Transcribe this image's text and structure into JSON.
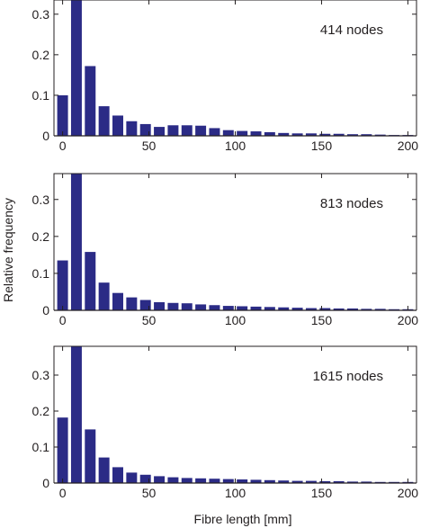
{
  "figure": {
    "xlabel": "Fibre length [mm]",
    "ylabel": "Relative  frequency"
  },
  "chart_data": [
    {
      "type": "bar",
      "annotation": "414  nodes",
      "bin_centers": [
        0,
        8,
        16,
        24,
        32,
        40,
        48,
        56,
        64,
        72,
        80,
        88,
        96,
        104,
        112,
        120,
        128,
        136,
        144,
        152,
        160,
        168,
        176,
        184,
        192,
        200
      ],
      "values": [
        0.1,
        0.34,
        0.172,
        0.073,
        0.05,
        0.036,
        0.029,
        0.022,
        0.026,
        0.026,
        0.025,
        0.019,
        0.014,
        0.012,
        0.011,
        0.009,
        0.007,
        0.006,
        0.006,
        0.005,
        0.005,
        0.004,
        0.004,
        0.003,
        0.002,
        0.002
      ],
      "xlim": [
        -5,
        205
      ],
      "ylim": [
        0,
        0.335
      ],
      "xticks": [
        0,
        50,
        100,
        150,
        200
      ],
      "yticks": [
        0,
        0.1,
        0.2,
        0.3
      ],
      "ytick_labels": [
        "0",
        "0.1",
        "0.2",
        "0.3"
      ],
      "bar_color": "#2b2b86"
    },
    {
      "type": "bar",
      "annotation": "813  nodes",
      "bin_centers": [
        0,
        8,
        16,
        24,
        32,
        40,
        48,
        56,
        64,
        72,
        80,
        88,
        96,
        104,
        112,
        120,
        128,
        136,
        144,
        152,
        160,
        168,
        176,
        184,
        192,
        200
      ],
      "values": [
        0.135,
        0.37,
        0.158,
        0.075,
        0.047,
        0.035,
        0.028,
        0.022,
        0.02,
        0.019,
        0.016,
        0.014,
        0.012,
        0.011,
        0.01,
        0.009,
        0.008,
        0.007,
        0.006,
        0.006,
        0.005,
        0.005,
        0.004,
        0.004,
        0.003,
        0.003
      ],
      "xlim": [
        -5,
        205
      ],
      "ylim": [
        0,
        0.37
      ],
      "xticks": [
        0,
        50,
        100,
        150,
        200
      ],
      "yticks": [
        0,
        0.1,
        0.2,
        0.3
      ],
      "ytick_labels": [
        "0",
        "0.1",
        "0.2",
        "0.3"
      ],
      "bar_color": "#2b2b86"
    },
    {
      "type": "bar",
      "annotation": "1615  nodes",
      "bin_centers": [
        0,
        8,
        16,
        24,
        32,
        40,
        48,
        56,
        64,
        72,
        80,
        88,
        96,
        104,
        112,
        120,
        128,
        136,
        144,
        152,
        160,
        168,
        176,
        184,
        192,
        200
      ],
      "values": [
        0.182,
        0.385,
        0.149,
        0.071,
        0.044,
        0.029,
        0.023,
        0.019,
        0.016,
        0.014,
        0.013,
        0.012,
        0.011,
        0.01,
        0.009,
        0.008,
        0.007,
        0.006,
        0.006,
        0.005,
        0.005,
        0.004,
        0.004,
        0.003,
        0.003,
        0.003
      ],
      "xlim": [
        -5,
        205
      ],
      "ylim": [
        0,
        0.38
      ],
      "xticks": [
        0,
        50,
        100,
        150,
        200
      ],
      "yticks": [
        0,
        0.1,
        0.2,
        0.3
      ],
      "ytick_labels": [
        "0",
        "0.1",
        "0.2",
        "0.3"
      ],
      "bar_color": "#2b2b86"
    }
  ]
}
